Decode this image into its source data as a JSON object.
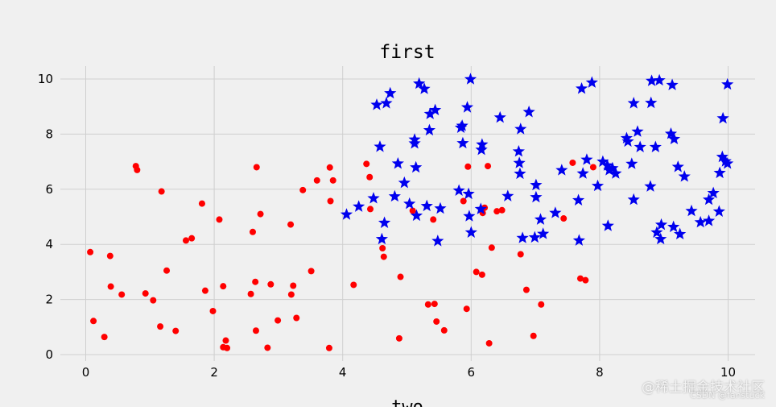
{
  "chart_data": {
    "type": "scatter",
    "title": "first",
    "xlabel": "two",
    "ylabel": "",
    "xlim": [
      -0.4,
      10.4
    ],
    "ylim": [
      -0.2,
      10.4
    ],
    "xticks": [
      "0",
      "2",
      "4",
      "6",
      "8",
      "10"
    ],
    "yticks": [
      "0",
      "2",
      "4",
      "6",
      "8",
      "10"
    ],
    "grid": true,
    "series": [
      {
        "marker": "circle",
        "color": "#ff0000",
        "points": [
          [
            0.07,
            3.72
          ],
          [
            0.12,
            1.22
          ],
          [
            0.29,
            0.64
          ],
          [
            0.38,
            3.58
          ],
          [
            0.39,
            2.47
          ],
          [
            0.56,
            2.18
          ],
          [
            0.78,
            6.84
          ],
          [
            0.8,
            6.7
          ],
          [
            0.93,
            2.22
          ],
          [
            1.05,
            1.97
          ],
          [
            1.16,
            1.02
          ],
          [
            1.18,
            5.92
          ],
          [
            1.26,
            3.05
          ],
          [
            1.4,
            0.86
          ],
          [
            1.56,
            4.14
          ],
          [
            1.65,
            4.22
          ],
          [
            1.81,
            5.48
          ],
          [
            1.86,
            2.32
          ],
          [
            1.98,
            1.58
          ],
          [
            2.08,
            4.9
          ],
          [
            2.14,
            0.27
          ],
          [
            2.14,
            2.48
          ],
          [
            2.18,
            0.51
          ],
          [
            2.2,
            0.24
          ],
          [
            2.57,
            2.2
          ],
          [
            2.6,
            4.45
          ],
          [
            2.64,
            2.64
          ],
          [
            2.65,
            0.87
          ],
          [
            2.66,
            6.8
          ],
          [
            2.72,
            5.1
          ],
          [
            2.83,
            0.25
          ],
          [
            2.88,
            2.55
          ],
          [
            2.99,
            1.24
          ],
          [
            3.19,
            4.72
          ],
          [
            3.2,
            2.18
          ],
          [
            3.23,
            2.5
          ],
          [
            3.28,
            1.33
          ],
          [
            3.38,
            5.97
          ],
          [
            3.51,
            3.03
          ],
          [
            3.6,
            6.32
          ],
          [
            3.79,
            0.24
          ],
          [
            3.8,
            6.79
          ],
          [
            3.81,
            5.57
          ],
          [
            3.85,
            6.32
          ],
          [
            4.17,
            2.53
          ],
          [
            4.37,
            6.92
          ],
          [
            4.42,
            6.44
          ],
          [
            4.43,
            5.28
          ],
          [
            4.62,
            3.86
          ],
          [
            4.64,
            3.55
          ],
          [
            4.88,
            0.59
          ],
          [
            4.9,
            2.82
          ],
          [
            5.09,
            5.22
          ],
          [
            5.33,
            1.82
          ],
          [
            5.41,
            4.9
          ],
          [
            5.43,
            1.84
          ],
          [
            5.46,
            1.2
          ],
          [
            5.58,
            0.88
          ],
          [
            5.88,
            5.57
          ],
          [
            5.93,
            1.66
          ],
          [
            5.95,
            6.82
          ],
          [
            6.08,
            3
          ],
          [
            6.17,
            2.9
          ],
          [
            6.18,
            5.14
          ],
          [
            6.21,
            5.33
          ],
          [
            6.26,
            6.84
          ],
          [
            6.28,
            0.41
          ],
          [
            6.32,
            3.88
          ],
          [
            6.4,
            5.2
          ],
          [
            6.48,
            5.24
          ],
          [
            6.77,
            3.64
          ],
          [
            6.86,
            2.35
          ],
          [
            6.97,
            0.68
          ],
          [
            7.09,
            1.82
          ],
          [
            7.44,
            4.94
          ],
          [
            7.58,
            6.96
          ],
          [
            7.7,
            2.76
          ],
          [
            7.78,
            2.7
          ],
          [
            7.9,
            6.8
          ]
        ]
      },
      {
        "marker": "star",
        "color": "#0000ee",
        "points": [
          [
            4.06,
            5.08
          ],
          [
            4.25,
            5.37
          ],
          [
            4.48,
            5.67
          ],
          [
            4.53,
            9.06
          ],
          [
            4.58,
            7.54
          ],
          [
            4.61,
            4.19
          ],
          [
            4.65,
            4.78
          ],
          [
            4.68,
            9.12
          ],
          [
            4.74,
            9.48
          ],
          [
            4.81,
            5.74
          ],
          [
            4.86,
            6.93
          ],
          [
            4.96,
            6.23
          ],
          [
            5.04,
            5.47
          ],
          [
            5.12,
            7.66
          ],
          [
            5.12,
            7.8
          ],
          [
            5.14,
            6.79
          ],
          [
            5.15,
            5.04
          ],
          [
            5.19,
            9.83
          ],
          [
            5.27,
            9.64
          ],
          [
            5.31,
            5.39
          ],
          [
            5.35,
            8.14
          ],
          [
            5.36,
            8.73
          ],
          [
            5.44,
            8.87
          ],
          [
            5.48,
            4.12
          ],
          [
            5.52,
            5.3
          ],
          [
            5.81,
            5.95
          ],
          [
            5.84,
            8.23
          ],
          [
            5.86,
            8.3
          ],
          [
            5.87,
            7.67
          ],
          [
            5.94,
            8.97
          ],
          [
            5.96,
            5.83
          ],
          [
            5.97,
            5.02
          ],
          [
            5.99,
            9.99
          ],
          [
            6.0,
            4.43
          ],
          [
            6.15,
            5.28
          ],
          [
            6.16,
            7.43
          ],
          [
            6.17,
            7.62
          ],
          [
            6.45,
            8.6
          ],
          [
            6.57,
            5.75
          ],
          [
            6.74,
            7.37
          ],
          [
            6.75,
            6.95
          ],
          [
            6.76,
            6.56
          ],
          [
            6.77,
            8.18
          ],
          [
            6.8,
            4.23
          ],
          [
            6.9,
            8.8
          ],
          [
            6.99,
            4.25
          ],
          [
            7.01,
            6.15
          ],
          [
            7.01,
            5.71
          ],
          [
            7.08,
            4.9
          ],
          [
            7.12,
            4.38
          ],
          [
            7.31,
            5.14
          ],
          [
            7.41,
            6.69
          ],
          [
            7.67,
            5.6
          ],
          [
            7.68,
            4.14
          ],
          [
            7.72,
            9.65
          ],
          [
            7.74,
            6.57
          ],
          [
            7.8,
            7.07
          ],
          [
            7.88,
            9.87
          ],
          [
            7.97,
            6.12
          ],
          [
            8.05,
            7.0
          ],
          [
            8.12,
            6.86
          ],
          [
            8.13,
            4.67
          ],
          [
            8.15,
            6.69
          ],
          [
            8.2,
            6.76
          ],
          [
            8.25,
            6.57
          ],
          [
            8.42,
            7.85
          ],
          [
            8.44,
            7.73
          ],
          [
            8.5,
            6.92
          ],
          [
            8.53,
            9.12
          ],
          [
            8.53,
            5.62
          ],
          [
            8.59,
            8.09
          ],
          [
            8.63,
            7.53
          ],
          [
            8.79,
            6.1
          ],
          [
            8.8,
            9.13
          ],
          [
            8.81,
            9.93
          ],
          [
            8.87,
            7.53
          ],
          [
            8.89,
            4.43
          ],
          [
            8.93,
            9.95
          ],
          [
            8.95,
            4.19
          ],
          [
            8.96,
            4.71
          ],
          [
            9.11,
            8.01
          ],
          [
            9.13,
            9.78
          ],
          [
            9.15,
            4.63
          ],
          [
            9.16,
            7.82
          ],
          [
            9.22,
            6.81
          ],
          [
            9.25,
            4.37
          ],
          [
            9.32,
            6.46
          ],
          [
            9.43,
            5.21
          ],
          [
            9.57,
            4.8
          ],
          [
            9.7,
            4.85
          ],
          [
            9.7,
            5.62
          ],
          [
            9.77,
            5.86
          ],
          [
            9.86,
            5.19
          ],
          [
            9.87,
            6.59
          ],
          [
            9.91,
            7.17
          ],
          [
            9.92,
            8.57
          ],
          [
            9.96,
            7.01
          ],
          [
            9.99,
            9.8
          ],
          [
            9.99,
            6.93
          ]
        ]
      }
    ]
  },
  "watermark": {
    "line1": "@稀土掘金技术社区",
    "line2": "CSDN @fanstuck"
  }
}
